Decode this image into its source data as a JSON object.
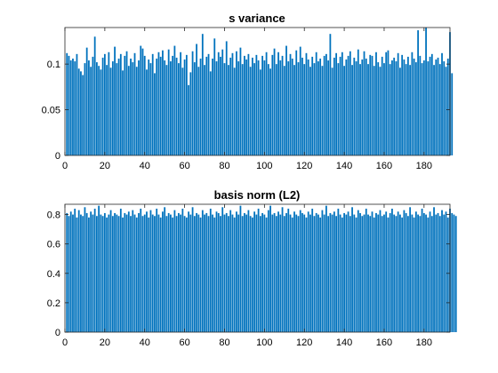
{
  "colors": {
    "bar": "#0072BD",
    "axis": "#262626",
    "background": "#ffffff"
  },
  "chart_data": [
    {
      "type": "bar",
      "title": "s variance",
      "xlabel": "",
      "ylabel": "",
      "xlim": [
        0,
        193
      ],
      "ylim": [
        0,
        0.14
      ],
      "grid": false,
      "xticks": [
        0,
        20,
        40,
        60,
        80,
        100,
        120,
        140,
        160,
        180
      ],
      "xtick_labels": [
        "0",
        "20",
        "40",
        "60",
        "80",
        "100",
        "120",
        "140",
        "160",
        "180"
      ],
      "yticks": [
        0,
        0.05,
        0.1
      ],
      "ytick_labels": [
        "0",
        "0.05",
        "0.1"
      ],
      "x_start": 1,
      "values": [
        0.112,
        0.109,
        0.104,
        0.106,
        0.103,
        0.111,
        0.095,
        0.092,
        0.088,
        0.101,
        0.118,
        0.104,
        0.097,
        0.108,
        0.13,
        0.102,
        0.098,
        0.094,
        0.107,
        0.111,
        0.099,
        0.113,
        0.096,
        0.103,
        0.119,
        0.101,
        0.106,
        0.111,
        0.093,
        0.109,
        0.114,
        0.098,
        0.106,
        0.102,
        0.112,
        0.097,
        0.104,
        0.12,
        0.117,
        0.109,
        0.094,
        0.105,
        0.101,
        0.111,
        0.09,
        0.106,
        0.113,
        0.108,
        0.115,
        0.104,
        0.099,
        0.116,
        0.103,
        0.109,
        0.12,
        0.107,
        0.101,
        0.113,
        0.096,
        0.105,
        0.11,
        0.077,
        0.091,
        0.114,
        0.102,
        0.122,
        0.097,
        0.106,
        0.133,
        0.099,
        0.108,
        0.111,
        0.092,
        0.106,
        0.128,
        0.103,
        0.113,
        0.108,
        0.116,
        0.101,
        0.125,
        0.099,
        0.107,
        0.112,
        0.096,
        0.114,
        0.103,
        0.118,
        0.1,
        0.109,
        0.105,
        0.111,
        0.097,
        0.107,
        0.101,
        0.11,
        0.104,
        0.094,
        0.109,
        0.104,
        0.113,
        0.1,
        0.095,
        0.11,
        0.117,
        0.1,
        0.113,
        0.104,
        0.109,
        0.098,
        0.12,
        0.103,
        0.111,
        0.106,
        0.099,
        0.115,
        0.102,
        0.119,
        0.107,
        0.1,
        0.112,
        0.105,
        0.097,
        0.108,
        0.101,
        0.113,
        0.103,
        0.106,
        0.098,
        0.109,
        0.111,
        0.104,
        0.133,
        0.096,
        0.107,
        0.112,
        0.101,
        0.108,
        0.113,
        0.098,
        0.105,
        0.109,
        0.114,
        0.099,
        0.107,
        0.103,
        0.116,
        0.1,
        0.105,
        0.114,
        0.106,
        0.1,
        0.11,
        0.109,
        0.098,
        0.113,
        0.102,
        0.097,
        0.108,
        0.101,
        0.113,
        0.115,
        0.1,
        0.104,
        0.107,
        0.103,
        0.112,
        0.096,
        0.11,
        0.105,
        0.1,
        0.108,
        0.099,
        0.113,
        0.106,
        0.102,
        0.137,
        0.109,
        0.101,
        0.104,
        0.14,
        0.103,
        0.108,
        0.111,
        0.099,
        0.105,
        0.107,
        0.1,
        0.112,
        0.103,
        0.097,
        0.106,
        0.135,
        0.09
      ]
    },
    {
      "type": "bar",
      "title": "basis norm (L2)",
      "xlabel": "",
      "ylabel": "",
      "xlim": [
        0,
        193
      ],
      "ylim": [
        0,
        0.87
      ],
      "grid": false,
      "xticks": [
        0,
        20,
        40,
        60,
        80,
        100,
        120,
        140,
        160,
        180
      ],
      "xtick_labels": [
        "0",
        "20",
        "40",
        "60",
        "80",
        "100",
        "120",
        "140",
        "160",
        "180"
      ],
      "yticks": [
        0,
        0.2,
        0.4,
        0.6,
        0.8
      ],
      "ytick_labels": [
        "0",
        "0.2",
        "0.4",
        "0.6",
        "0.8"
      ],
      "x_start": 1,
      "values": [
        0.81,
        0.79,
        0.82,
        0.8,
        0.84,
        0.78,
        0.83,
        0.8,
        0.79,
        0.85,
        0.81,
        0.78,
        0.82,
        0.8,
        0.84,
        0.79,
        0.86,
        0.8,
        0.79,
        0.81,
        0.78,
        0.8,
        0.83,
        0.79,
        0.81,
        0.8,
        0.79,
        0.84,
        0.78,
        0.81,
        0.8,
        0.82,
        0.79,
        0.83,
        0.8,
        0.78,
        0.81,
        0.84,
        0.79,
        0.8,
        0.82,
        0.78,
        0.83,
        0.8,
        0.79,
        0.84,
        0.8,
        0.78,
        0.82,
        0.85,
        0.79,
        0.81,
        0.8,
        0.78,
        0.83,
        0.79,
        0.81,
        0.8,
        0.84,
        0.79,
        0.78,
        0.82,
        0.8,
        0.85,
        0.79,
        0.81,
        0.8,
        0.78,
        0.83,
        0.8,
        0.81,
        0.79,
        0.84,
        0.8,
        0.78,
        0.82,
        0.81,
        0.79,
        0.85,
        0.8,
        0.81,
        0.79,
        0.83,
        0.8,
        0.78,
        0.82,
        0.8,
        0.86,
        0.79,
        0.81,
        0.8,
        0.83,
        0.79,
        0.78,
        0.82,
        0.8,
        0.84,
        0.79,
        0.81,
        0.8,
        0.78,
        0.83,
        0.86,
        0.8,
        0.81,
        0.79,
        0.82,
        0.8,
        0.85,
        0.79,
        0.81,
        0.84,
        0.8,
        0.78,
        0.82,
        0.8,
        0.79,
        0.83,
        0.81,
        0.8,
        0.78,
        0.82,
        0.8,
        0.84,
        0.79,
        0.81,
        0.8,
        0.78,
        0.83,
        0.8,
        0.86,
        0.79,
        0.81,
        0.8,
        0.82,
        0.79,
        0.84,
        0.8,
        0.78,
        0.81,
        0.8,
        0.82,
        0.79,
        0.85,
        0.8,
        0.78,
        0.83,
        0.81,
        0.79,
        0.8,
        0.84,
        0.8,
        0.79,
        0.82,
        0.78,
        0.81,
        0.8,
        0.83,
        0.79,
        0.8,
        0.82,
        0.78,
        0.81,
        0.84,
        0.8,
        0.79,
        0.82,
        0.8,
        0.78,
        0.83,
        0.81,
        0.79,
        0.85,
        0.8,
        0.78,
        0.82,
        0.8,
        0.79,
        0.84,
        0.81,
        0.8,
        0.78,
        0.82,
        0.79,
        0.85,
        0.8,
        0.81,
        0.79,
        0.83,
        0.8,
        0.82,
        0.78,
        0.84,
        0.81,
        0.8,
        0.79
      ]
    }
  ]
}
